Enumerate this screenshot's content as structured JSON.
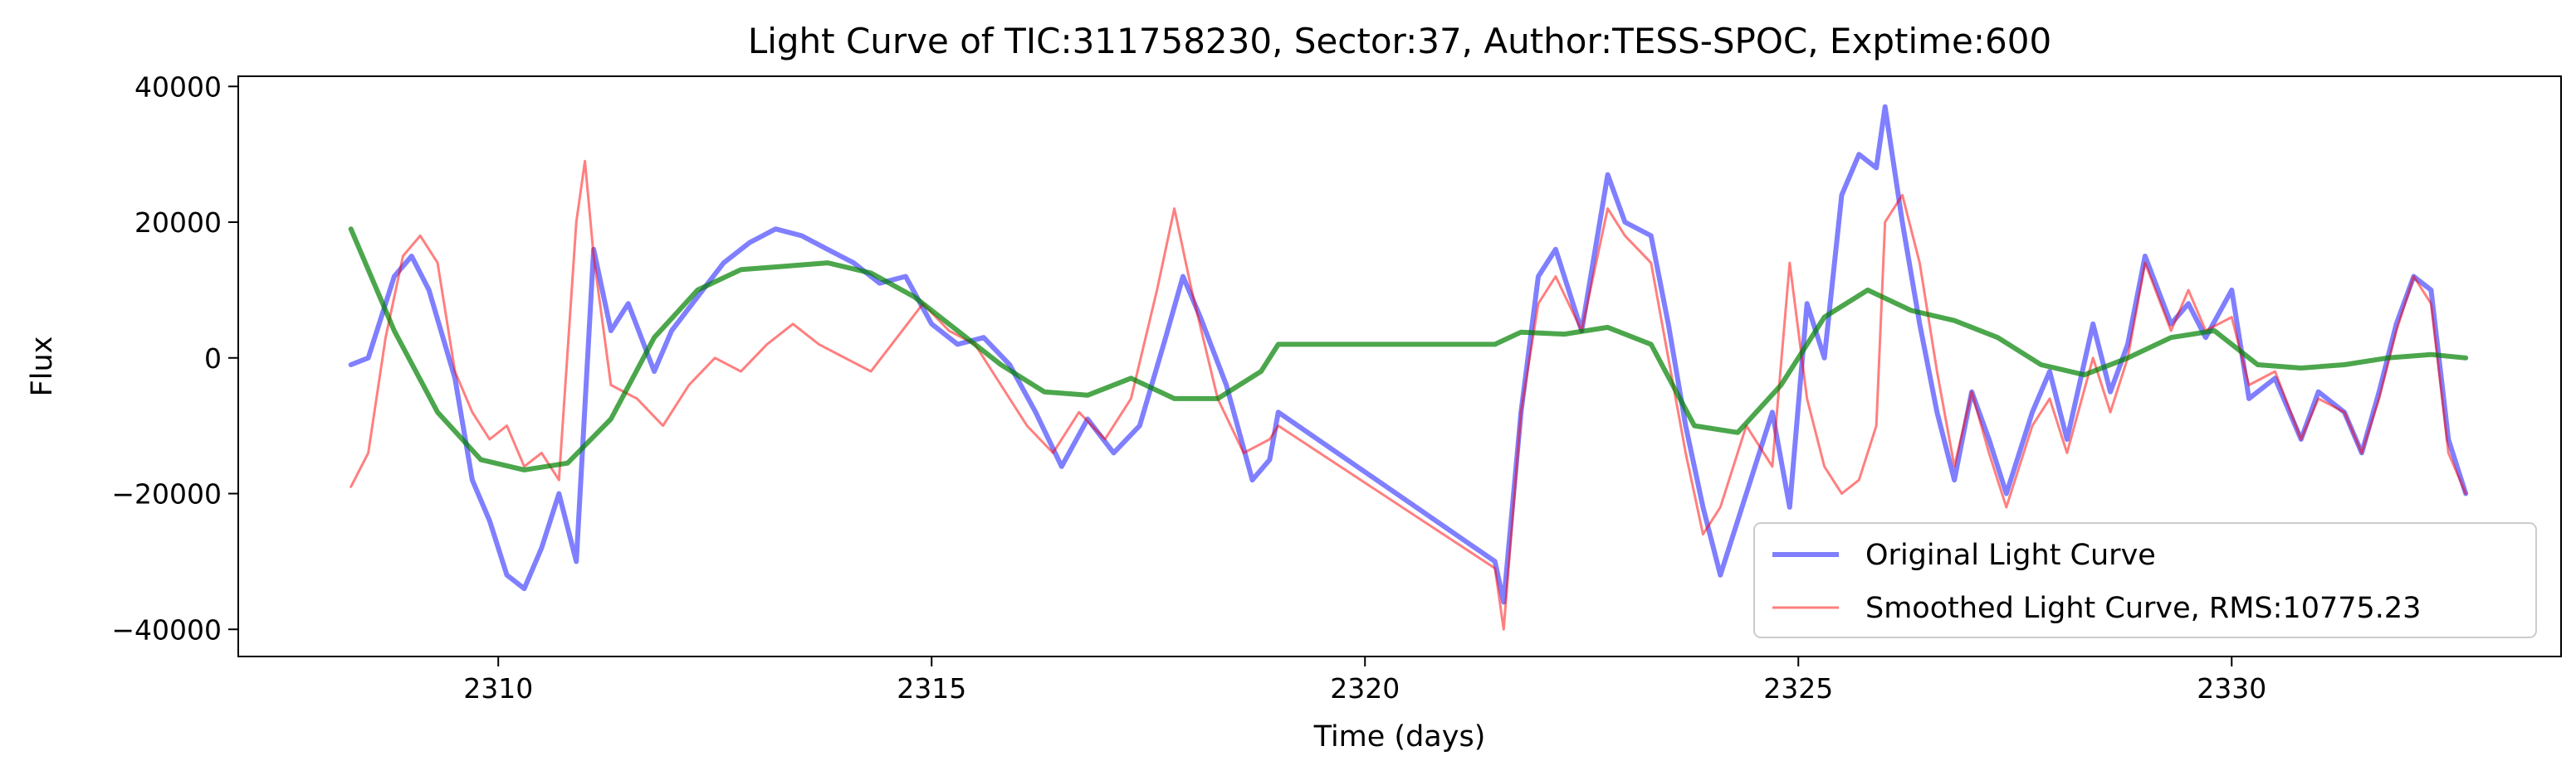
{
  "chart_data": {
    "type": "line",
    "title": "Light Curve of TIC:311758230, Sector:37, Author:TESS-SPOC, Exptime:600",
    "xlabel": "Time (days)",
    "ylabel": "Flux",
    "xlim": [
      2307.0,
      2333.8
    ],
    "ylim": [
      -44000,
      41500
    ],
    "x_ticks": [
      2310,
      2315,
      2320,
      2325,
      2330
    ],
    "y_ticks": [
      -40000,
      -20000,
      0,
      20000,
      40000
    ],
    "grid": false,
    "legend_position": "lower-right",
    "series": [
      {
        "name": "Original Light Curve",
        "color": "#0000ff",
        "x": [
          2308.3,
          2308.5,
          2308.8,
          2309.0,
          2309.2,
          2309.5,
          2309.7,
          2309.9,
          2310.1,
          2310.3,
          2310.5,
          2310.7,
          2310.9,
          2311.1,
          2311.3,
          2311.5,
          2311.8,
          2312.0,
          2312.3,
          2312.6,
          2312.9,
          2313.2,
          2313.5,
          2313.8,
          2314.1,
          2314.4,
          2314.7,
          2315.0,
          2315.3,
          2315.6,
          2315.9,
          2316.2,
          2316.5,
          2316.8,
          2317.1,
          2317.4,
          2317.7,
          2317.9,
          2318.1,
          2318.4,
          2318.7,
          2318.9,
          2319.0,
          2321.5,
          2321.6,
          2321.8,
          2322.0,
          2322.2,
          2322.5,
          2322.8,
          2323.0,
          2323.3,
          2323.5,
          2323.7,
          2323.9,
          2324.1,
          2324.4,
          2324.7,
          2324.9,
          2325.1,
          2325.3,
          2325.5,
          2325.7,
          2325.9,
          2326.0,
          2326.2,
          2326.4,
          2326.6,
          2326.8,
          2327.0,
          2327.2,
          2327.4,
          2327.7,
          2327.9,
          2328.1,
          2328.4,
          2328.6,
          2328.8,
          2329.0,
          2329.3,
          2329.5,
          2329.7,
          2330.0,
          2330.2,
          2330.5,
          2330.8,
          2331.0,
          2331.3,
          2331.5,
          2331.7,
          2331.9,
          2332.1,
          2332.3,
          2332.5,
          2332.7
        ],
        "y": [
          -1000,
          0,
          12000,
          15000,
          10000,
          -3000,
          -18000,
          -24000,
          -32000,
          -34000,
          -28000,
          -20000,
          -30000,
          16000,
          4000,
          8000,
          -2000,
          4000,
          9000,
          14000,
          17000,
          19000,
          18000,
          16000,
          14000,
          11000,
          12000,
          5000,
          2000,
          3000,
          -1000,
          -8000,
          -16000,
          -9000,
          -14000,
          -10000,
          3000,
          12000,
          6000,
          -4000,
          -18000,
          -15000,
          -8000,
          -30000,
          -36000,
          -8000,
          12000,
          16000,
          4000,
          27000,
          20000,
          18000,
          5000,
          -10000,
          -22000,
          -32000,
          -20000,
          -8000,
          -22000,
          8000,
          0,
          24000,
          30000,
          28000,
          37000,
          20000,
          5000,
          -8000,
          -18000,
          -5000,
          -12000,
          -20000,
          -8000,
          -2000,
          -12000,
          5000,
          -5000,
          2000,
          15000,
          5000,
          8000,
          3000,
          10000,
          -6000,
          -3000,
          -12000,
          -5000,
          -8000,
          -14000,
          -5000,
          5000,
          12000,
          10000,
          -12000,
          -20000
        ]
      },
      {
        "name": "Smoothed Light Curve, RMS:10775.23",
        "color": "#ff0000",
        "x": [
          2308.3,
          2308.5,
          2308.7,
          2308.9,
          2309.1,
          2309.3,
          2309.5,
          2309.7,
          2309.9,
          2310.1,
          2310.3,
          2310.5,
          2310.7,
          2310.9,
          2311.0,
          2311.1,
          2311.3,
          2311.6,
          2311.9,
          2312.2,
          2312.5,
          2312.8,
          2313.1,
          2313.4,
          2313.7,
          2314.0,
          2314.3,
          2314.6,
          2314.9,
          2315.2,
          2315.5,
          2315.8,
          2316.1,
          2316.4,
          2316.7,
          2317.0,
          2317.3,
          2317.6,
          2317.8,
          2318.0,
          2318.3,
          2318.6,
          2318.9,
          2319.0,
          2321.5,
          2321.6,
          2321.8,
          2322.0,
          2322.2,
          2322.5,
          2322.8,
          2323.0,
          2323.3,
          2323.5,
          2323.7,
          2323.9,
          2324.1,
          2324.4,
          2324.7,
          2324.9,
          2325.1,
          2325.3,
          2325.5,
          2325.7,
          2325.9,
          2326.0,
          2326.2,
          2326.4,
          2326.6,
          2326.8,
          2327.0,
          2327.2,
          2327.4,
          2327.7,
          2327.9,
          2328.1,
          2328.4,
          2328.6,
          2328.8,
          2329.0,
          2329.3,
          2329.5,
          2329.7,
          2330.0,
          2330.2,
          2330.5,
          2330.8,
          2331.0,
          2331.3,
          2331.5,
          2331.7,
          2331.9,
          2332.1,
          2332.3,
          2332.5,
          2332.7
        ],
        "y": [
          -19000,
          -14000,
          3000,
          15000,
          18000,
          14000,
          -2000,
          -8000,
          -12000,
          -10000,
          -16000,
          -14000,
          -18000,
          20000,
          29000,
          15000,
          -4000,
          -6000,
          -10000,
          -4000,
          0,
          -2000,
          2000,
          5000,
          2000,
          0,
          -2000,
          3000,
          8000,
          4000,
          2000,
          -4000,
          -10000,
          -14000,
          -8000,
          -12000,
          -6000,
          10000,
          22000,
          10000,
          -6000,
          -14000,
          -12000,
          -10000,
          -31000,
          -40000,
          -8000,
          8000,
          12000,
          4000,
          22000,
          18000,
          14000,
          0,
          -14000,
          -26000,
          -22000,
          -10000,
          -16000,
          14000,
          -6000,
          -16000,
          -20000,
          -18000,
          -10000,
          20000,
          24000,
          14000,
          -2000,
          -16000,
          -5000,
          -14000,
          -22000,
          -10000,
          -6000,
          -14000,
          0,
          -8000,
          0,
          14000,
          4000,
          10000,
          4000,
          6000,
          -4000,
          -2000,
          -12000,
          -6000,
          -8000,
          -14000,
          -6000,
          4000,
          12000,
          8000,
          -14000,
          -20000
        ]
      },
      {
        "name": "",
        "color": "#008000",
        "x": [
          2308.3,
          2308.8,
          2309.3,
          2309.8,
          2310.3,
          2310.8,
          2311.3,
          2311.8,
          2312.3,
          2312.8,
          2313.3,
          2313.8,
          2314.3,
          2314.8,
          2315.3,
          2315.8,
          2316.3,
          2316.8,
          2317.3,
          2317.8,
          2318.3,
          2318.8,
          2319.0,
          2320.0,
          2321.0,
          2321.5,
          2321.8,
          2322.3,
          2322.8,
          2323.3,
          2323.8,
          2324.3,
          2324.8,
          2325.3,
          2325.8,
          2326.3,
          2326.8,
          2327.3,
          2327.8,
          2328.3,
          2328.8,
          2329.3,
          2329.8,
          2330.3,
          2330.8,
          2331.3,
          2331.8,
          2332.3,
          2332.7
        ],
        "y": [
          19000,
          4000,
          -8000,
          -15000,
          -16500,
          -15500,
          -9000,
          3000,
          10000,
          13000,
          13500,
          14000,
          12500,
          9000,
          4000,
          -1000,
          -5000,
          -5500,
          -3000,
          -6000,
          -6000,
          -2000,
          2000,
          2000,
          2000,
          2000,
          3800,
          3500,
          4500,
          2000,
          -10000,
          -11000,
          -4000,
          6000,
          10000,
          7000,
          5500,
          3000,
          -1000,
          -2500,
          0,
          3000,
          4000,
          -1000,
          -1500,
          -1000,
          0,
          500,
          0
        ]
      }
    ]
  }
}
